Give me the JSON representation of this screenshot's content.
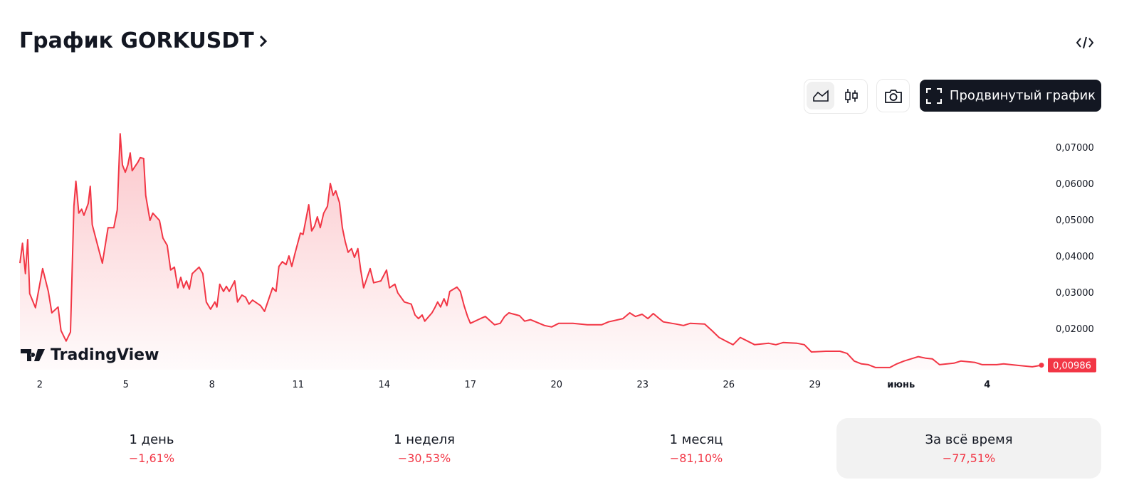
{
  "header": {
    "title": "График GORKUSDT"
  },
  "toolbar": {
    "advanced_button": "Продвинутый график"
  },
  "watermark": "TradingView",
  "chart_data": {
    "type": "area",
    "color": "#f23645",
    "x": [
      1.31,
      1.4,
      1.5,
      1.58,
      1.65,
      1.85,
      2.1,
      2.3,
      2.42,
      2.64,
      2.74,
      2.92,
      3.07,
      3.19,
      3.26,
      3.36,
      3.46,
      3.54,
      3.69,
      3.76,
      3.83,
      4.08,
      4.18,
      4.38,
      4.58,
      4.7,
      4.8,
      4.88,
      4.98,
      5.07,
      5.15,
      5.22,
      5.42,
      5.5,
      5.62,
      5.69,
      5.84,
      5.94,
      6.17,
      6.29,
      6.44,
      6.56,
      6.69,
      6.81,
      6.91,
      7.01,
      7.11,
      7.21,
      7.31,
      7.55,
      7.68,
      7.8,
      7.95,
      8.1,
      8.17,
      8.27,
      8.4,
      8.5,
      8.6,
      8.79,
      8.89,
      9.04,
      9.17,
      9.29,
      9.41,
      9.69,
      9.83,
      9.98,
      10.11,
      10.23,
      10.33,
      10.45,
      10.58,
      10.68,
      10.78,
      10.88,
      11.08,
      11.17,
      11.37,
      11.47,
      11.57,
      11.67,
      11.77,
      11.89,
      12.02,
      12.12,
      12.22,
      12.31,
      12.44,
      12.54,
      12.64,
      12.74,
      12.86,
      12.96,
      13.08,
      13.18,
      13.28,
      13.51,
      13.63,
      13.88,
      14.08,
      14.18,
      14.37,
      14.47,
      14.7,
      14.94,
      15.07,
      15.19,
      15.32,
      15.41,
      15.66,
      15.76,
      15.86,
      15.96,
      16.08,
      16.18,
      16.28,
      16.53,
      16.65,
      16.78,
      16.9,
      17.0,
      17.35,
      17.52,
      17.84,
      18.04,
      18.19,
      18.34,
      18.71,
      18.89,
      19.09,
      19.58,
      19.83,
      20.08,
      20.57,
      21.07,
      21.57,
      21.81,
      22.31,
      22.55,
      22.75,
      22.98,
      23.18,
      23.37,
      23.55,
      23.72,
      24.17,
      24.42,
      24.66,
      25.16,
      25.41,
      25.66,
      25.9,
      26.15,
      26.4,
      26.65,
      26.9,
      27.39,
      27.64,
      27.89,
      28.38,
      28.63,
      28.88,
      29.38,
      29.87,
      30.12,
      30.37,
      30.62,
      30.86,
      31.11,
      31.61,
      31.85,
      32.1,
      32.35,
      32.6,
      32.85,
      33.09,
      33.34,
      33.84,
      34.08,
      34.58,
      34.83,
      35.33,
      35.57,
      36.07,
      36.57,
      36.89
    ],
    "values": [
      0.038,
      0.0435,
      0.0351,
      0.0445,
      0.0296,
      0.0257,
      0.0365,
      0.0302,
      0.0243,
      0.0259,
      0.0194,
      0.0165,
      0.019,
      0.0537,
      0.0606,
      0.0518,
      0.0529,
      0.0512,
      0.0545,
      0.0592,
      0.0486,
      0.041,
      0.038,
      0.0478,
      0.0478,
      0.0527,
      0.0737,
      0.0651,
      0.0631,
      0.0651,
      0.0684,
      0.0635,
      0.0659,
      0.0671,
      0.0669,
      0.0567,
      0.0498,
      0.0518,
      0.0498,
      0.0449,
      0.0429,
      0.0361,
      0.0369,
      0.0312,
      0.0341,
      0.0312,
      0.0331,
      0.0308,
      0.0351,
      0.0369,
      0.0351,
      0.0273,
      0.0253,
      0.0273,
      0.0259,
      0.0322,
      0.0302,
      0.0316,
      0.0302,
      0.0331,
      0.0273,
      0.0292,
      0.0286,
      0.0267,
      0.0278,
      0.0263,
      0.0247,
      0.0282,
      0.0312,
      0.0302,
      0.0371,
      0.0384,
      0.0376,
      0.04,
      0.0371,
      0.0404,
      0.0463,
      0.0459,
      0.0541,
      0.0469,
      0.0482,
      0.0508,
      0.0478,
      0.0518,
      0.0537,
      0.06,
      0.0567,
      0.058,
      0.0547,
      0.0478,
      0.0439,
      0.041,
      0.042,
      0.0396,
      0.042,
      0.0361,
      0.0312,
      0.0365,
      0.0326,
      0.0331,
      0.0361,
      0.0312,
      0.0322,
      0.0298,
      0.0273,
      0.0267,
      0.0237,
      0.0227,
      0.0237,
      0.022,
      0.0243,
      0.0257,
      0.0273,
      0.0259,
      0.0282,
      0.0263,
      0.0302,
      0.0314,
      0.0302,
      0.0263,
      0.0233,
      0.0214,
      0.0227,
      0.0233,
      0.021,
      0.0214,
      0.0233,
      0.0243,
      0.0235,
      0.022,
      0.0224,
      0.0208,
      0.0204,
      0.0214,
      0.0214,
      0.021,
      0.021,
      0.0218,
      0.0227,
      0.0243,
      0.0233,
      0.0239,
      0.0227,
      0.0241,
      0.0229,
      0.0218,
      0.0212,
      0.0208,
      0.0214,
      0.0212,
      0.0194,
      0.0175,
      0.0165,
      0.0155,
      0.0175,
      0.0165,
      0.0155,
      0.0159,
      0.0155,
      0.0161,
      0.0159,
      0.0155,
      0.0135,
      0.0137,
      0.0137,
      0.0131,
      0.011,
      0.0102,
      0.01,
      0.0092,
      0.0092,
      0.0102,
      0.011,
      0.0116,
      0.0122,
      0.0118,
      0.0116,
      0.01,
      0.0104,
      0.011,
      0.0106,
      0.01,
      0.01,
      0.0102,
      0.0098,
      0.0094,
      0.00986
    ],
    "xlim": [
      1.31,
      36.89
    ],
    "xticks": [
      2,
      5,
      8,
      11,
      14,
      17,
      20,
      23,
      26,
      29,
      {
        "value": 32,
        "label": "июнь"
      },
      {
        "value": 35,
        "label": "4"
      }
    ],
    "ylim": [
      0.0086,
      0.074
    ],
    "yticks": [
      {
        "value": 0.02,
        "label": "0,02000"
      },
      {
        "value": 0.03,
        "label": "0,03000"
      },
      {
        "value": 0.04,
        "label": "0,04000"
      },
      {
        "value": 0.05,
        "label": "0,05000"
      },
      {
        "value": 0.06,
        "label": "0,06000"
      },
      {
        "value": 0.07,
        "label": "0,07000"
      }
    ],
    "current_price": {
      "value": 0.00986,
      "label": "0,00986"
    }
  },
  "periods": [
    {
      "label": "1 день",
      "change": "−1,61%"
    },
    {
      "label": "1 неделя",
      "change": "−30,53%"
    },
    {
      "label": "1 месяц",
      "change": "−81,10%"
    },
    {
      "label": "За всё время",
      "change": "−77,51%"
    }
  ]
}
